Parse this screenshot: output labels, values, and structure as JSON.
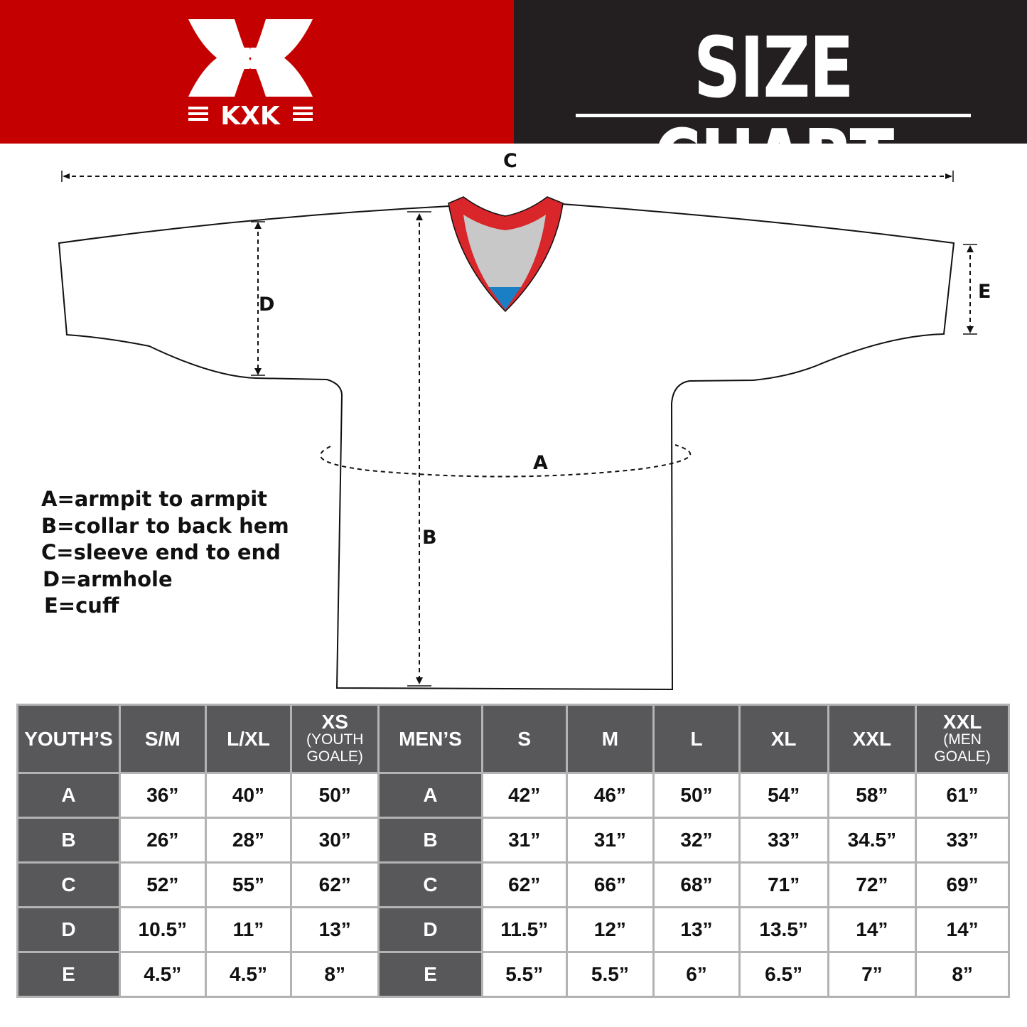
{
  "brand": {
    "logo_text": "KXK",
    "primary_color": "#c50000",
    "dark_color": "#231f20"
  },
  "title": "SIZE CHART",
  "diagram": {
    "labels": {
      "A": "A",
      "B": "B",
      "C": "C",
      "D": "D",
      "E": "E"
    },
    "collar_colors": {
      "trim": "#d9262a",
      "inner": "#c8c8c8",
      "tip": "#1a7fc4"
    }
  },
  "legend": [
    "A=armpit to armpit",
    "B=collar to back hem",
    "C=sleeve end to end",
    "D=armhole",
    "E=cuff"
  ],
  "table": {
    "youth_header": "YOUTH’S",
    "youth_sizes": [
      {
        "main": "S/M"
      },
      {
        "main": "L/XL"
      },
      {
        "main": "XS",
        "sub1": "(YOUTH",
        "sub2": "GOALE)"
      }
    ],
    "men_header": "MEN’S",
    "men_sizes": [
      {
        "main": "S"
      },
      {
        "main": "M"
      },
      {
        "main": "L"
      },
      {
        "main": "XL"
      },
      {
        "main": "XXL"
      },
      {
        "main": "XXL",
        "sub1": "(MEN",
        "sub2": "GOALE)"
      }
    ],
    "rows": [
      {
        "label": "A",
        "youth": [
          "36”",
          "40”",
          "50”"
        ],
        "men": [
          "42”",
          "46”",
          "50”",
          "54”",
          "58”",
          "61”"
        ]
      },
      {
        "label": "B",
        "youth": [
          "26”",
          "28”",
          "30”"
        ],
        "men": [
          "31”",
          "31”",
          "32”",
          "33”",
          "34.5”",
          "33”"
        ]
      },
      {
        "label": "C",
        "youth": [
          "52”",
          "55”",
          "62”"
        ],
        "men": [
          "62”",
          "66”",
          "68”",
          "71”",
          "72”",
          "69”"
        ]
      },
      {
        "label": "D",
        "youth": [
          "10.5”",
          "11”",
          "13”"
        ],
        "men": [
          "11.5”",
          "12”",
          "13”",
          "13.5”",
          "14”",
          "14”"
        ]
      },
      {
        "label": "E",
        "youth": [
          "4.5”",
          "4.5”",
          "8”"
        ],
        "men": [
          "5.5”",
          "5.5”",
          "6”",
          "6.5”",
          "7”",
          "8”"
        ]
      }
    ]
  }
}
